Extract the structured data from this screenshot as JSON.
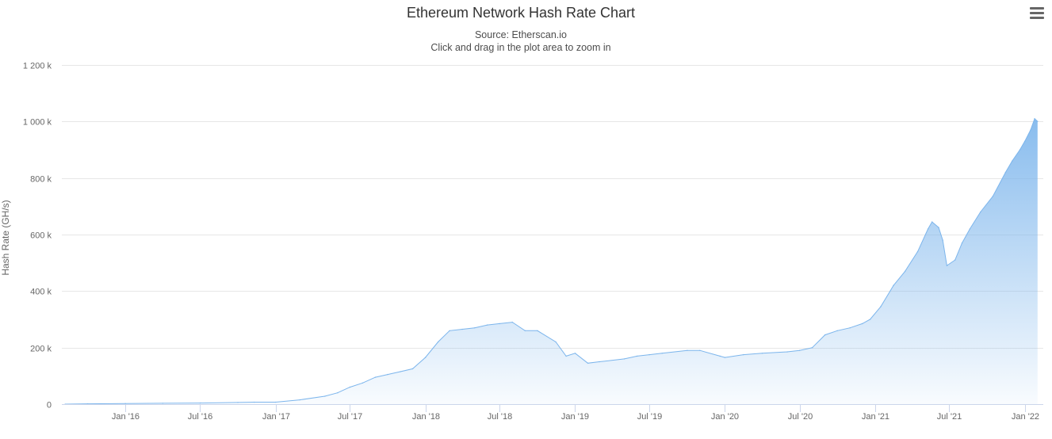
{
  "chart_data": {
    "type": "area",
    "title": "Ethereum Network Hash Rate Chart",
    "subtitle": "Source: Etherscan.io",
    "zoom_hint": "Click and drag in the plot area to zoom in",
    "ylabel": "Hash Rate (GH/s)",
    "xlabel": "",
    "ylim": [
      0,
      1200000
    ],
    "yticks": [
      0,
      200000,
      400000,
      600000,
      800000,
      1000000,
      1200000
    ],
    "ytick_labels": [
      "0",
      "200 k",
      "400 k",
      "600 k",
      "800 k",
      "1 000 k",
      "1 200 k"
    ],
    "xlim": [
      "2015-07-30",
      "2022-02-15"
    ],
    "xticks": [
      "2016-01-01",
      "2016-07-01",
      "2017-01-01",
      "2017-07-01",
      "2018-01-01",
      "2018-07-01",
      "2019-01-01",
      "2019-07-01",
      "2020-01-01",
      "2020-07-01",
      "2021-01-01",
      "2021-07-01",
      "2022-01-01"
    ],
    "xtick_labels": [
      "Jan '16",
      "Jul '16",
      "Jan '17",
      "Jul '17",
      "Jan '18",
      "Jul '18",
      "Jan '19",
      "Jul '19",
      "Jan '20",
      "Jul '20",
      "Jan '21",
      "Jul '21",
      "Jan '22"
    ],
    "grid": true,
    "legend": "none",
    "series": [
      {
        "color": "#7cb5ec",
        "points": [
          [
            "2015-08-07",
            0
          ],
          [
            "2015-10-01",
            1000
          ],
          [
            "2016-01-01",
            2000
          ],
          [
            "2016-04-01",
            3000
          ],
          [
            "2016-07-01",
            4000
          ],
          [
            "2016-10-01",
            6000
          ],
          [
            "2016-11-10",
            7000
          ],
          [
            "2017-01-01",
            7000
          ],
          [
            "2017-03-01",
            15000
          ],
          [
            "2017-05-01",
            28000
          ],
          [
            "2017-06-01",
            40000
          ],
          [
            "2017-07-01",
            60000
          ],
          [
            "2017-08-01",
            75000
          ],
          [
            "2017-09-01",
            95000
          ],
          [
            "2017-10-01",
            105000
          ],
          [
            "2017-11-01",
            115000
          ],
          [
            "2017-12-01",
            125000
          ],
          [
            "2018-01-01",
            165000
          ],
          [
            "2018-02-01",
            220000
          ],
          [
            "2018-03-01",
            260000
          ],
          [
            "2018-04-01",
            265000
          ],
          [
            "2018-05-01",
            270000
          ],
          [
            "2018-06-01",
            280000
          ],
          [
            "2018-07-01",
            285000
          ],
          [
            "2018-08-01",
            290000
          ],
          [
            "2018-09-01",
            260000
          ],
          [
            "2018-10-01",
            260000
          ],
          [
            "2018-11-15",
            220000
          ],
          [
            "2018-12-10",
            170000
          ],
          [
            "2019-01-01",
            180000
          ],
          [
            "2019-02-01",
            145000
          ],
          [
            "2019-03-01",
            150000
          ],
          [
            "2019-05-01",
            160000
          ],
          [
            "2019-06-01",
            170000
          ],
          [
            "2019-07-01",
            175000
          ],
          [
            "2019-08-01",
            180000
          ],
          [
            "2019-10-01",
            190000
          ],
          [
            "2019-11-01",
            190000
          ],
          [
            "2019-12-20",
            170000
          ],
          [
            "2020-01-01",
            165000
          ],
          [
            "2020-02-15",
            175000
          ],
          [
            "2020-04-01",
            180000
          ],
          [
            "2020-06-01",
            185000
          ],
          [
            "2020-07-01",
            190000
          ],
          [
            "2020-08-01",
            200000
          ],
          [
            "2020-09-01",
            245000
          ],
          [
            "2020-10-01",
            260000
          ],
          [
            "2020-11-01",
            270000
          ],
          [
            "2020-12-01",
            285000
          ],
          [
            "2020-12-20",
            300000
          ],
          [
            "2021-01-15",
            345000
          ],
          [
            "2021-02-15",
            420000
          ],
          [
            "2021-03-15",
            470000
          ],
          [
            "2021-04-15",
            540000
          ],
          [
            "2021-05-10",
            620000
          ],
          [
            "2021-05-20",
            645000
          ],
          [
            "2021-06-05",
            625000
          ],
          [
            "2021-06-15",
            580000
          ],
          [
            "2021-06-25",
            490000
          ],
          [
            "2021-07-15",
            510000
          ],
          [
            "2021-08-01",
            570000
          ],
          [
            "2021-08-20",
            620000
          ],
          [
            "2021-09-15",
            680000
          ],
          [
            "2021-10-15",
            735000
          ],
          [
            "2021-11-15",
            820000
          ],
          [
            "2021-12-01",
            860000
          ],
          [
            "2021-12-20",
            900000
          ],
          [
            "2022-01-01",
            930000
          ],
          [
            "2022-01-15",
            970000
          ],
          [
            "2022-01-25",
            1010000
          ],
          [
            "2022-02-01",
            1000000
          ]
        ]
      }
    ]
  },
  "menu": {
    "icon": "hamburger-menu-icon"
  }
}
